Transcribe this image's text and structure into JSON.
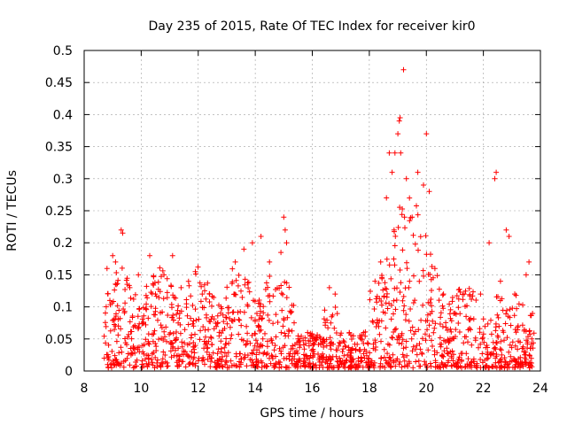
{
  "chart_data": {
    "type": "scatter",
    "title": "Day 235 of 2015, Rate Of TEC Index for receiver kir0",
    "xlabel": "GPS time / hours",
    "ylabel": "ROTI / TECUs",
    "xlim": [
      8,
      24
    ],
    "ylim": [
      0,
      0.5
    ],
    "x_ticks": [
      "8",
      "10",
      "12",
      "14",
      "16",
      "18",
      "20",
      "22",
      "24"
    ],
    "y_ticks": [
      "0",
      "0.05",
      "0.1",
      "0.15",
      "0.2",
      "0.25",
      "0.3",
      "0.35",
      "0.4",
      "0.45",
      "0.5"
    ],
    "grid": true,
    "marker": "+",
    "series": [
      {
        "name": "kir0",
        "color": "#ff0000",
        "points": [
          [
            8.8,
            0.16
          ],
          [
            8.9,
            0.11
          ],
          [
            9.0,
            0.18
          ],
          [
            9.1,
            0.17
          ],
          [
            9.3,
            0.22
          ],
          [
            9.35,
            0.215
          ],
          [
            9.6,
            0.13
          ],
          [
            9.9,
            0.15
          ],
          [
            10.3,
            0.18
          ],
          [
            10.5,
            0.12
          ],
          [
            10.8,
            0.15
          ],
          [
            11.1,
            0.18
          ],
          [
            11.4,
            0.13
          ],
          [
            11.9,
            0.155
          ],
          [
            12.4,
            0.12
          ],
          [
            12.8,
            0.1
          ],
          [
            13.3,
            0.17
          ],
          [
            13.6,
            0.19
          ],
          [
            13.9,
            0.2
          ],
          [
            14.2,
            0.21
          ],
          [
            14.5,
            0.17
          ],
          [
            14.9,
            0.185
          ],
          [
            15.0,
            0.24
          ],
          [
            15.05,
            0.22
          ],
          [
            15.1,
            0.2
          ],
          [
            15.5,
            0.05
          ],
          [
            16.1,
            0.05
          ],
          [
            16.6,
            0.13
          ],
          [
            16.8,
            0.12
          ],
          [
            17.3,
            0.06
          ],
          [
            17.8,
            0.06
          ],
          [
            18.2,
            0.14
          ],
          [
            18.4,
            0.17
          ],
          [
            18.6,
            0.27
          ],
          [
            18.7,
            0.34
          ],
          [
            18.8,
            0.31
          ],
          [
            18.9,
            0.34
          ],
          [
            19.0,
            0.37
          ],
          [
            19.05,
            0.39
          ],
          [
            19.08,
            0.395
          ],
          [
            19.1,
            0.34
          ],
          [
            19.2,
            0.47
          ],
          [
            19.3,
            0.3
          ],
          [
            19.5,
            0.24
          ],
          [
            19.7,
            0.31
          ],
          [
            19.9,
            0.29
          ],
          [
            20.0,
            0.37
          ],
          [
            20.1,
            0.28
          ],
          [
            20.3,
            0.16
          ],
          [
            20.6,
            0.12
          ],
          [
            21.0,
            0.09
          ],
          [
            21.5,
            0.08
          ],
          [
            21.9,
            0.12
          ],
          [
            22.2,
            0.2
          ],
          [
            22.4,
            0.3
          ],
          [
            22.45,
            0.31
          ],
          [
            22.6,
            0.14
          ],
          [
            22.8,
            0.22
          ],
          [
            22.9,
            0.21
          ],
          [
            23.1,
            0.12
          ],
          [
            23.5,
            0.15
          ],
          [
            23.6,
            0.17
          ],
          [
            23.7,
            0.05
          ]
        ]
      }
    ]
  }
}
